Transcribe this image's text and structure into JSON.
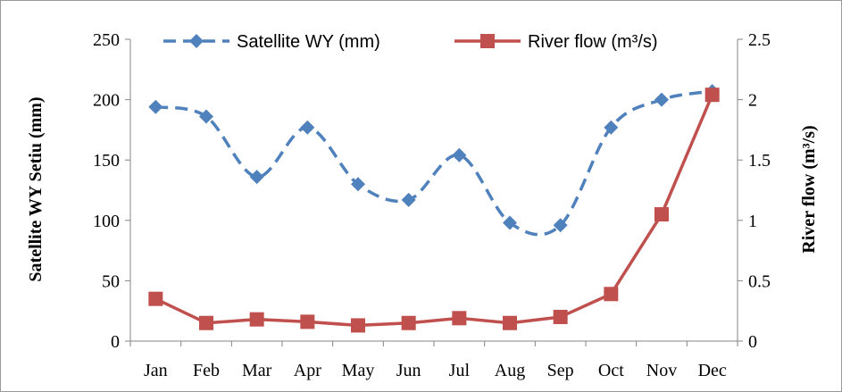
{
  "chart_data": {
    "type": "line",
    "categories": [
      "Jan",
      "Feb",
      "Mar",
      "Apr",
      "May",
      "Jun",
      "Jul",
      "Aug",
      "Sep",
      "Oct",
      "Nov",
      "Dec"
    ],
    "series": [
      {
        "name": "Satellite WY (mm)",
        "axis": "left",
        "style": "dashed-smooth",
        "marker": "diamond",
        "color": "#4F81BD",
        "values": [
          194,
          186,
          136,
          177,
          130,
          117,
          154,
          98,
          96,
          177,
          200,
          207
        ]
      },
      {
        "name": "River flow  (m³/s)",
        "axis": "right",
        "style": "solid",
        "marker": "square",
        "color": "#C0504D",
        "values": [
          0.35,
          0.15,
          0.18,
          0.16,
          0.13,
          0.15,
          0.19,
          0.15,
          0.2,
          0.39,
          1.05,
          2.04
        ]
      }
    ],
    "ylabel": "Satellite WY Setiu (mm)",
    "y2label": "River flow (m³/s)",
    "ylim": [
      0,
      250
    ],
    "y2lim": [
      0,
      2.5
    ],
    "yticks": [
      "0",
      "50",
      "100",
      "150",
      "200",
      "250"
    ],
    "y2ticks": [
      "0",
      "0.5",
      "1",
      "1.5",
      "2",
      "2.5"
    ],
    "grid": false,
    "legend_position": "top"
  }
}
